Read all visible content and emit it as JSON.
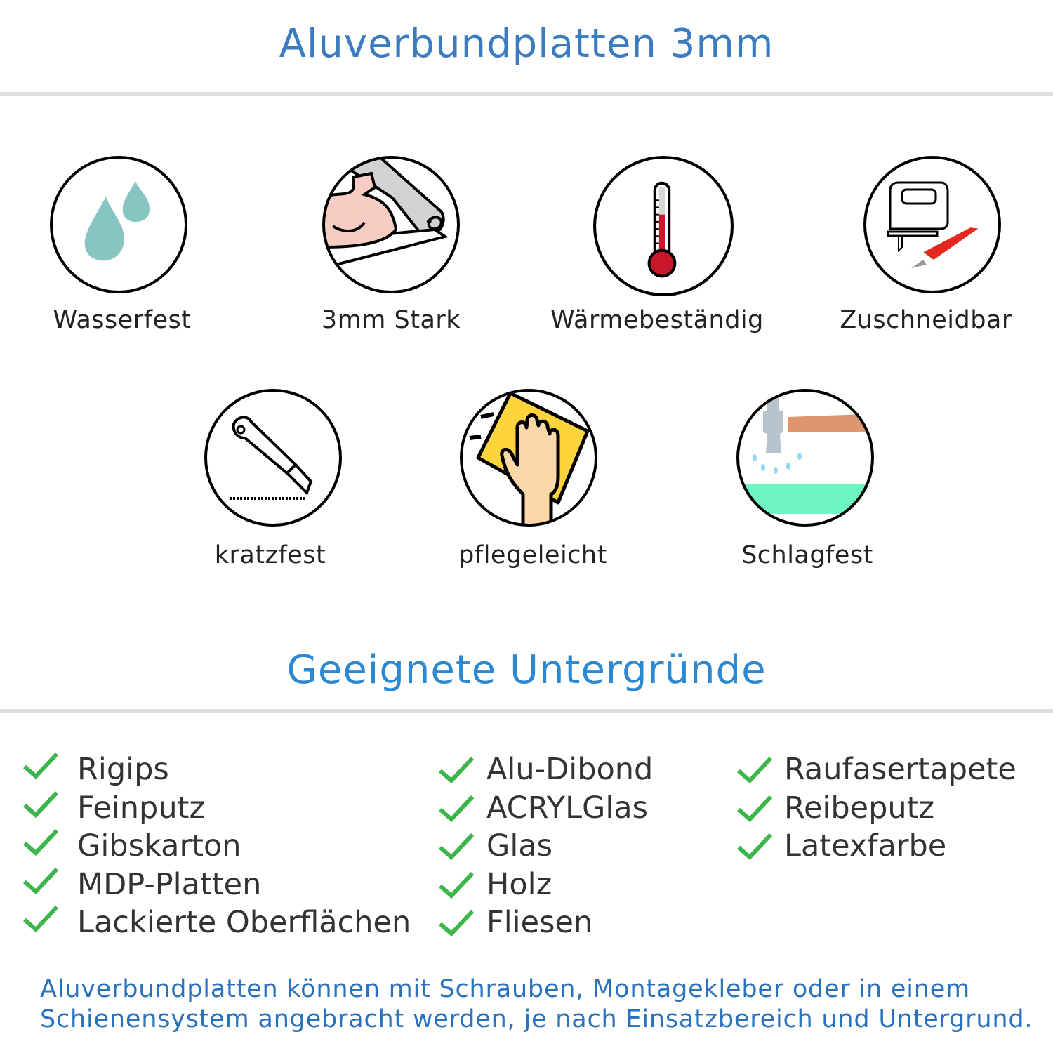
{
  "header": {
    "title": "Aluverbundplatten 3mm",
    "color": "#3a7cbf"
  },
  "features": [
    {
      "label": "Wasserfest",
      "icon": "water-drops-icon"
    },
    {
      "label": "3mm Stark",
      "icon": "strong-arm-icon"
    },
    {
      "label": "Wärmebeständig",
      "icon": "thermometer-icon"
    },
    {
      "label": "Zuschneidbar",
      "icon": "jigsaw-knife-icon"
    },
    {
      "label": "kratzfest",
      "icon": "cutter-knife-icon"
    },
    {
      "label": "pflegeleicht",
      "icon": "cleaning-hand-icon"
    },
    {
      "label": "Schlagfest",
      "icon": "hammer-icon"
    }
  ],
  "surfaces": {
    "title": "Geeignete Untergründe",
    "color": "#2b88d2",
    "check_color": "#3cb54a",
    "columns": [
      [
        "Rigips",
        "Feinputz",
        "Gibskarton",
        "MDP-Platten",
        "Lackierte Oberflächen"
      ],
      [
        "Alu-Dibond",
        "ACRYLGlas",
        "Glas",
        "Holz",
        "Fliesen"
      ],
      [
        "Raufasertapete",
        "Reibeputz",
        "Latexfarbe"
      ]
    ]
  },
  "note": {
    "line1": "Aluverbundplatten können mit Schrauben, Montagekleber oder in einem",
    "line2": "Schienensystem angebracht werden, je nach Einsatzbereich und Untergrund."
  }
}
